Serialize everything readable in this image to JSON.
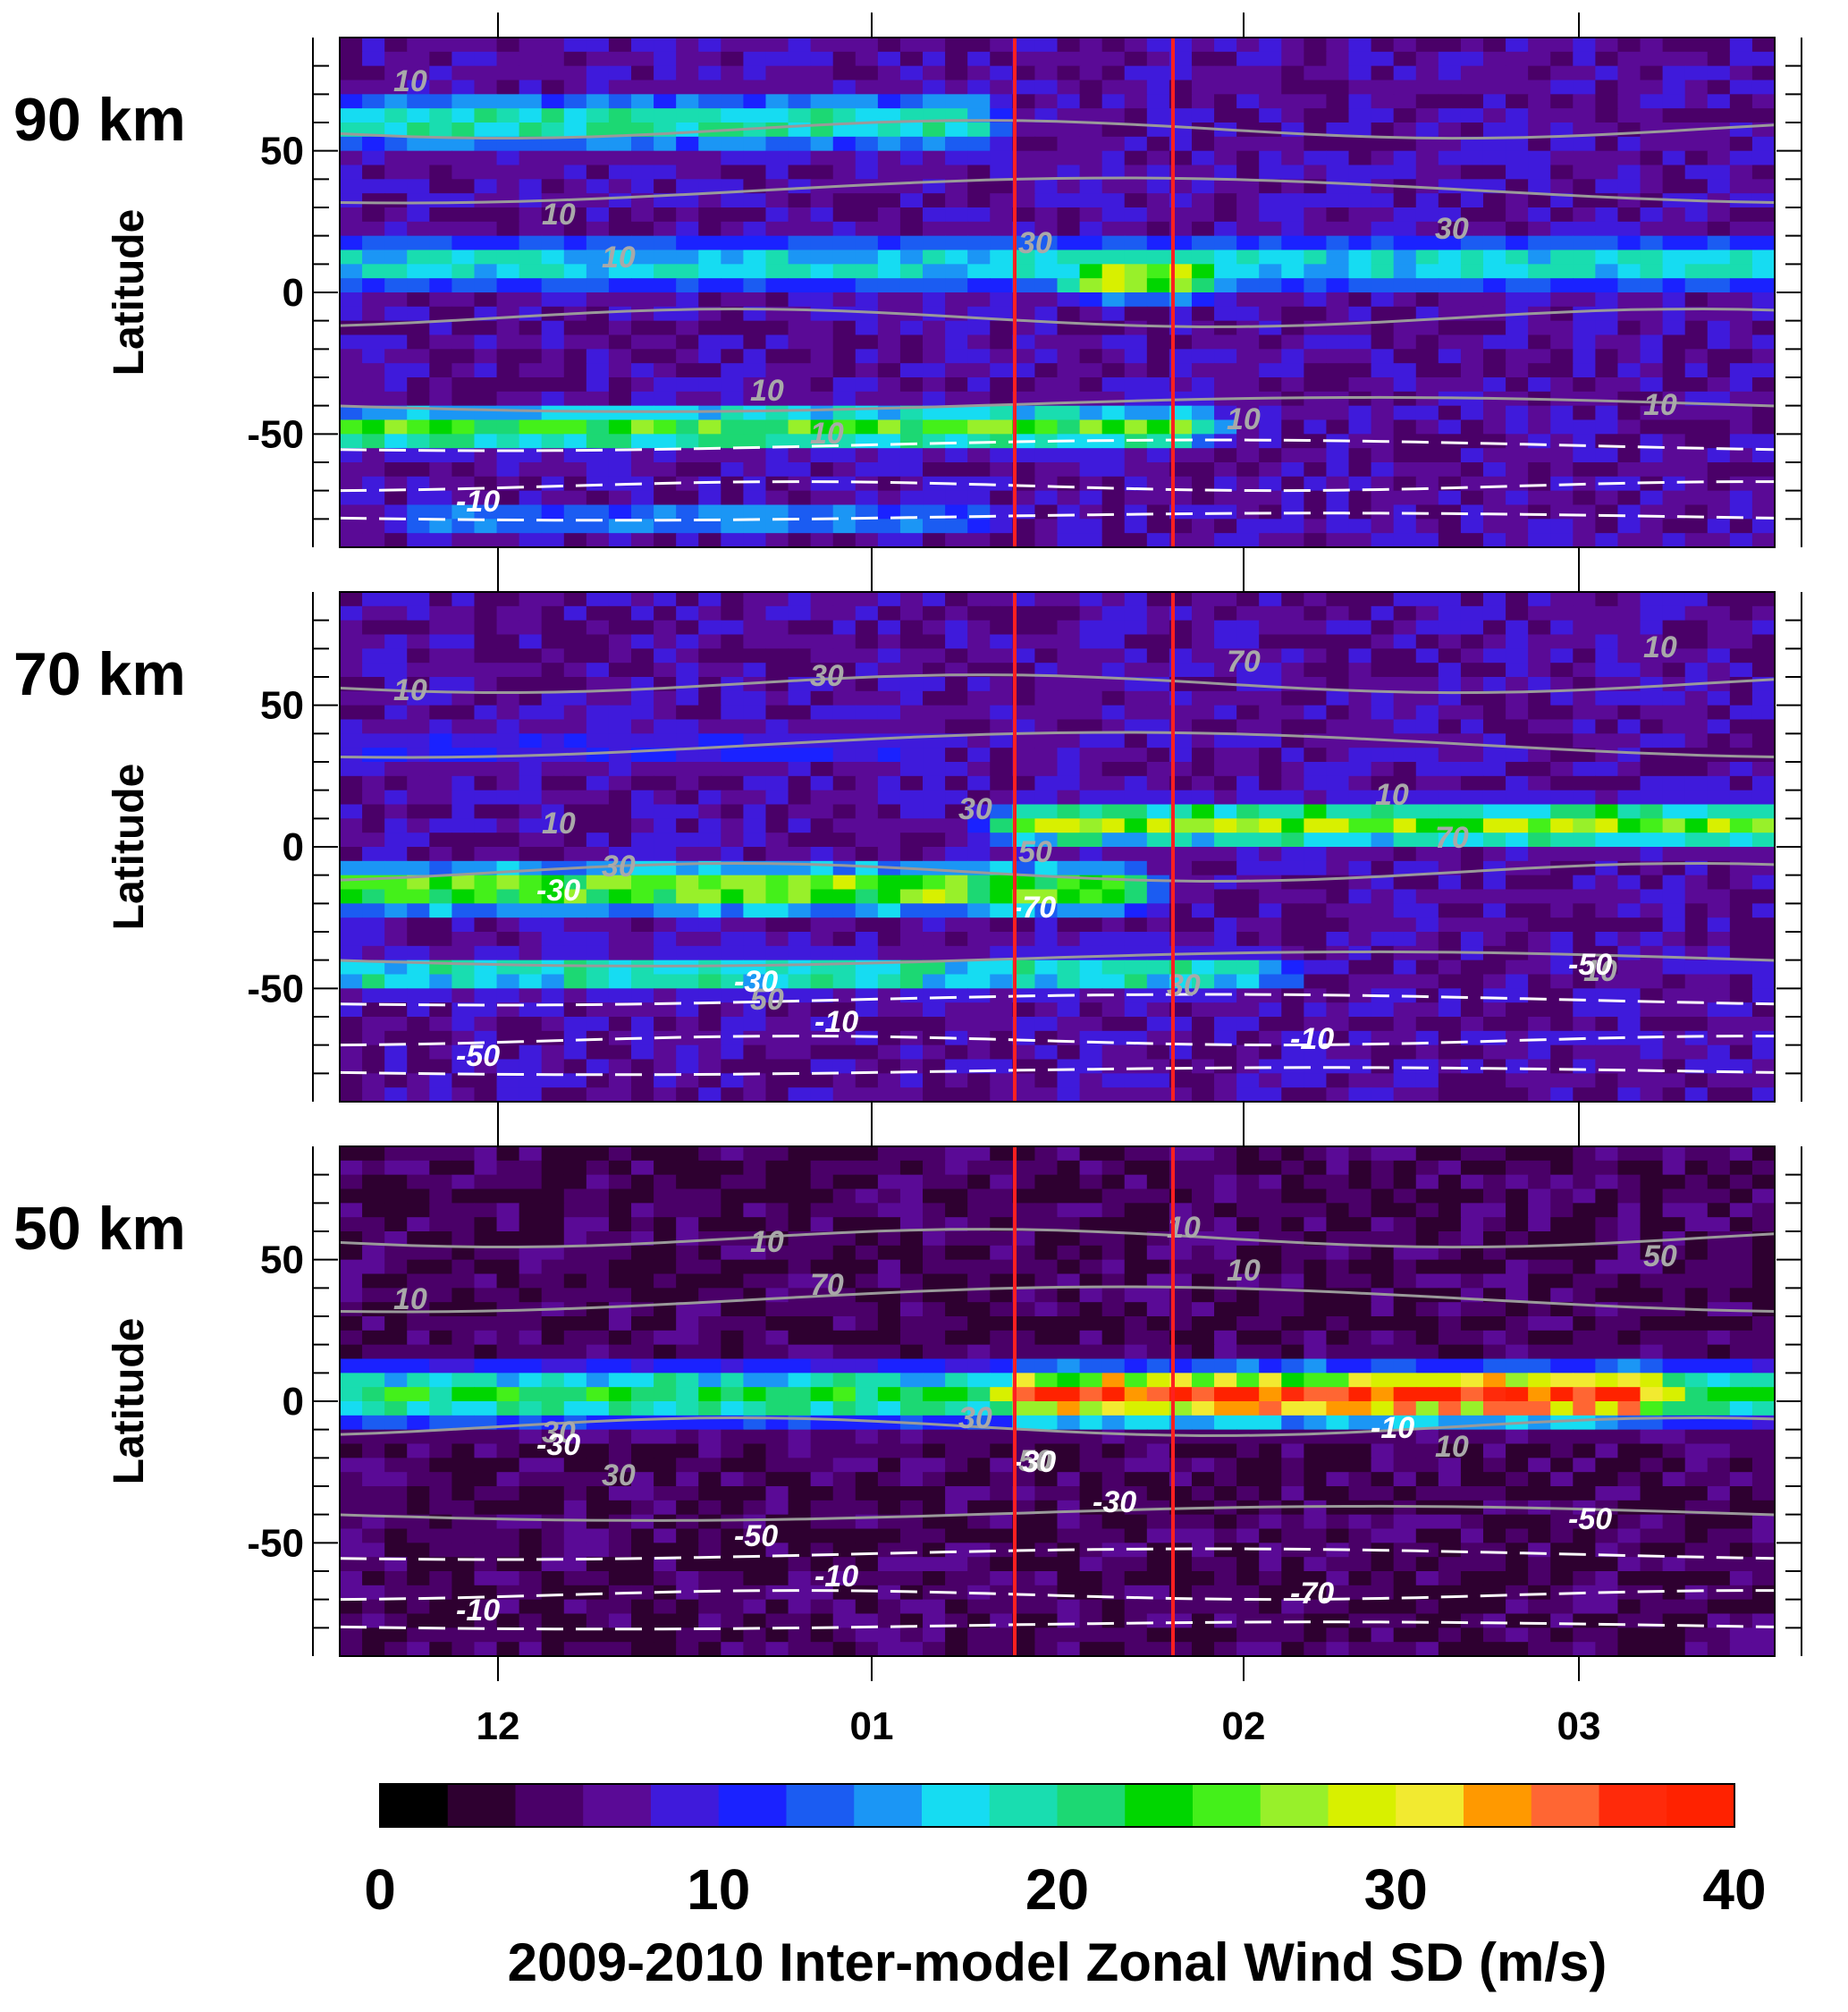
{
  "chart_data": {
    "type": "heatmap",
    "title": "",
    "colorbar": {
      "label": "2009-2010 Inter-model Zonal Wind SD (m/s)",
      "range": [
        0,
        40
      ],
      "step": 2,
      "tick_labels": [
        "0",
        "10",
        "20",
        "30",
        "40"
      ],
      "colors": [
        "#000000",
        "#2e0030",
        "#4a0068",
        "#5a0a96",
        "#3f1adb",
        "#1a22ff",
        "#1b5cf2",
        "#1b96f5",
        "#16dcf2",
        "#19ddb0",
        "#1cd873",
        "#00d600",
        "#44f01a",
        "#98f02a",
        "#d8f000",
        "#f2ea30",
        "#ff9900",
        "#ff6633",
        "#ff2a0a",
        "#ff2200"
      ]
    },
    "x_axis": {
      "tick_labels": [
        "12",
        "01",
        "02",
        "03"
      ],
      "units": "month"
    },
    "y_axis": {
      "label": "Latitude",
      "tick_labels": [
        "-50",
        "0",
        "50"
      ],
      "range": [
        -90,
        90
      ]
    },
    "vertical_markers": [
      "mid-January",
      "late January"
    ],
    "panels": [
      {
        "altitude_label": "90 km",
        "contour_labels_solid": [
          "10",
          "10",
          "10",
          "30",
          "10",
          "30",
          "10",
          "10",
          "10"
        ],
        "contour_labels_dashed": [
          "-10"
        ],
        "bands": [
          {
            "lat": 60,
            "width": 12,
            "sd": 20,
            "x_start": 0.0,
            "x_end": 0.45
          },
          {
            "lat": 10,
            "width": 12,
            "sd": 18,
            "x_start": 0.0,
            "x_end": 1.0
          },
          {
            "lat": 5,
            "width": 8,
            "sd": 30,
            "x_start": 0.52,
            "x_end": 0.6
          },
          {
            "lat": -48,
            "width": 9,
            "sd": 24,
            "x_start": 0.0,
            "x_end": 0.6
          },
          {
            "lat": -80,
            "width": 6,
            "sd": 16,
            "x_start": 0.05,
            "x_end": 0.45
          }
        ]
      },
      {
        "altitude_label": "70 km",
        "contour_labels_solid": [
          "10",
          "30",
          "30",
          "50",
          "70",
          "70",
          "10",
          "10",
          "50",
          "30",
          "30",
          "10",
          "10"
        ],
        "contour_labels_dashed": [
          "-50",
          "-30",
          "-70",
          "-10",
          "-50",
          "-30",
          "-10"
        ],
        "bands": [
          {
            "lat": 8,
            "width": 9,
            "sd": 26,
            "x_start": 0.47,
            "x_end": 1.0
          },
          {
            "lat": -15,
            "width": 10,
            "sd": 26,
            "x_start": 0.0,
            "x_end": 0.55
          },
          {
            "lat": -45,
            "width": 8,
            "sd": 20,
            "x_start": 0.0,
            "x_end": 0.65
          },
          {
            "lat": 35,
            "width": 12,
            "sd": 10,
            "x_start": 0.0,
            "x_end": 0.4
          }
        ]
      },
      {
        "altitude_label": "50 km",
        "contour_labels_solid": [
          "10",
          "30",
          "70",
          "50",
          "10",
          "10",
          "50",
          "30",
          "10",
          "30",
          "10"
        ],
        "contour_labels_dashed": [
          "-10",
          "-50",
          "-30",
          "-70",
          "-50",
          "-30",
          "-10",
          "-30",
          "-10"
        ],
        "bands": [
          {
            "lat": 2,
            "width": 10,
            "sd": 38,
            "x_start": 0.47,
            "x_end": 0.92
          },
          {
            "lat": 2,
            "width": 12,
            "sd": 22,
            "x_start": 0.0,
            "x_end": 1.0
          }
        ]
      }
    ]
  }
}
